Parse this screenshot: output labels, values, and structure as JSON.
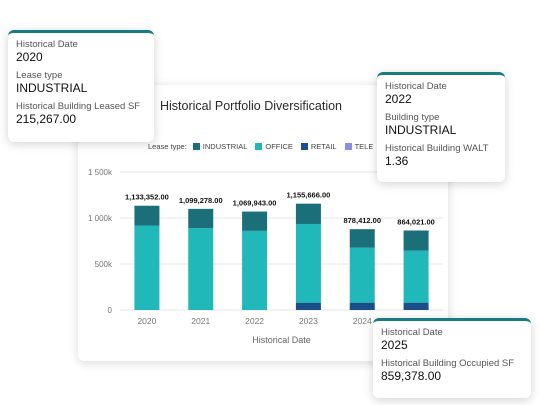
{
  "chart_data": {
    "type": "bar",
    "title": "Historical Portfolio Diversification",
    "legend_label": "Lease type:",
    "xlabel": "Historical Date",
    "categories": [
      "2020",
      "2021",
      "2022",
      "2023",
      "2024",
      "2025"
    ],
    "ylim": [
      0,
      1500000
    ],
    "ytick_labels": [
      "0",
      "500k",
      "1 000k",
      "1 500k"
    ],
    "series": [
      {
        "name": "INDUSTRIAL",
        "color": "#1a6f78",
        "values": [
          215267,
          209278,
          209943,
          220666,
          200412,
          219000
        ]
      },
      {
        "name": "OFFICE",
        "color": "#20b8b8",
        "values": [
          918085,
          890000,
          860000,
          855000,
          598000,
          565000
        ]
      },
      {
        "name": "RETAIL",
        "color": "#1b4f8a",
        "values": [
          0,
          0,
          0,
          80000,
          80000,
          80021
        ]
      },
      {
        "name": "TELE",
        "color": "#8a8fe0",
        "values": [
          0,
          0,
          0,
          0,
          0,
          0
        ]
      }
    ],
    "totals": [
      "1,133,352.00",
      "1,099,278.00",
      "1,069,943.00",
      "1,155,666.00",
      "878,412.00",
      "864,021.00"
    ],
    "grid": true
  },
  "tooltips": [
    {
      "l1": "Historical Date",
      "v1": "2020",
      "l2": "Lease type",
      "v2": "INDUSTRIAL",
      "l3": "Historical Building Leased SF",
      "v3": "215,267.00"
    },
    {
      "l1": "Historical Date",
      "v1": "2022",
      "l2": "Building type",
      "v2": "INDUSTRIAL",
      "l3": "Historical Building WALT",
      "v3": "1.36"
    },
    {
      "l1": "Historical Date",
      "v1": "2025",
      "l2": "Historical Building Occupied SF",
      "v2": "859,378.00"
    }
  ]
}
